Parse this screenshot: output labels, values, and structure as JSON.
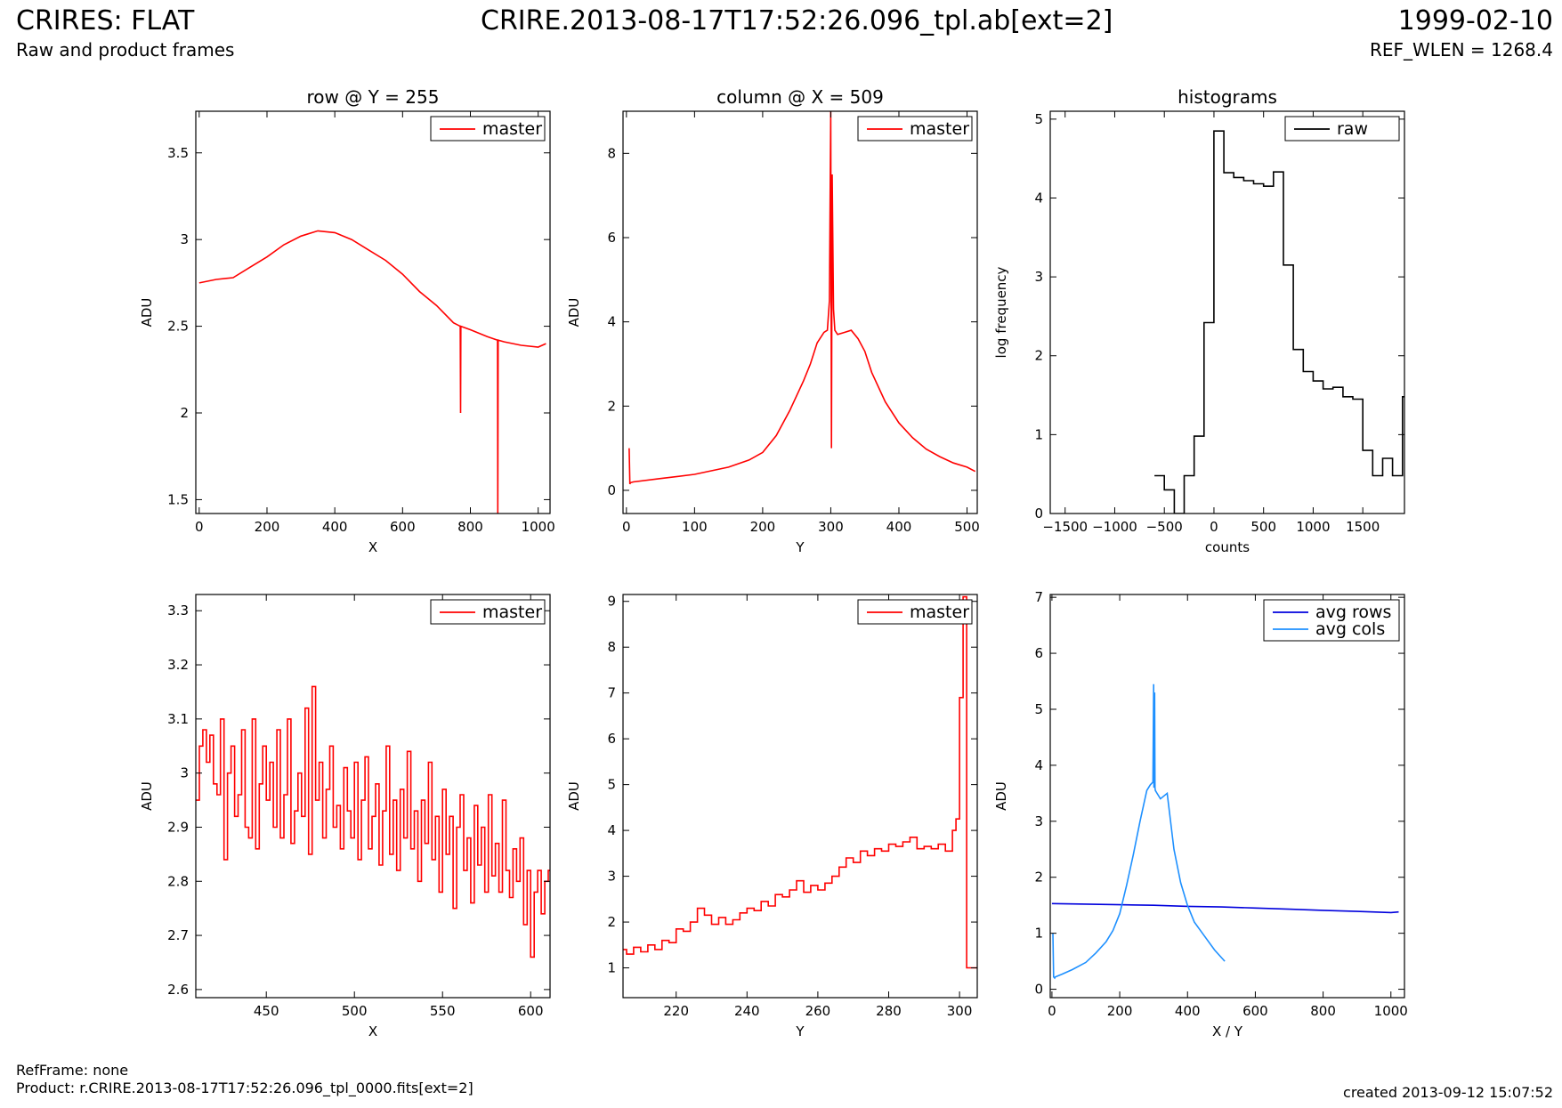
{
  "header": {
    "title_left": "CRIRES: FLAT",
    "title_center": "CRIRE.2013-08-17T17:52:26.096_tpl.ab[ext=2]",
    "title_right": "1999-02-10",
    "subtitle_left": "Raw and product frames",
    "subtitle_right": "REF_WLEN = 1268.4"
  },
  "footer": {
    "refframe": "RefFrame: none",
    "product": "Product: r.CRIRE.2013-08-17T17:52:26.096_tpl_0000.fits[ext=2]",
    "created": "created 2013-09-12 15:07:52"
  },
  "colors": {
    "red": "#ff0000",
    "black": "#000000",
    "navy": "#0000dd",
    "sky": "#1e90ff"
  },
  "chart_data": [
    {
      "id": "row-full",
      "type": "line",
      "title": "row @ Y = 255",
      "xlabel": "X",
      "ylabel": "ADU",
      "xlim": [
        -10,
        1035
      ],
      "ylim": [
        1.42,
        3.74
      ],
      "xticks": [
        0,
        200,
        400,
        600,
        800,
        1000
      ],
      "yticks": [
        1.5,
        2.0,
        2.5,
        3.0,
        3.5
      ],
      "legend_position": "top-right",
      "series": [
        {
          "name": "master",
          "color": "#ff0000",
          "x": [
            0,
            50,
            100,
            150,
            200,
            250,
            300,
            350,
            400,
            450,
            500,
            550,
            600,
            650,
            700,
            750,
            770,
            771,
            772,
            800,
            850,
            880,
            881,
            882,
            900,
            950,
            1000,
            1023
          ],
          "y": [
            2.75,
            2.77,
            2.78,
            2.84,
            2.9,
            2.97,
            3.02,
            3.05,
            3.04,
            3.0,
            2.94,
            2.88,
            2.8,
            2.7,
            2.62,
            2.52,
            2.5,
            2.0,
            2.5,
            2.48,
            2.44,
            2.42,
            1.42,
            2.42,
            2.41,
            2.39,
            2.38,
            2.4
          ]
        }
      ]
    },
    {
      "id": "col-full",
      "type": "line",
      "title": "column @ X = 509",
      "xlabel": "Y",
      "ylabel": "ADU",
      "xlim": [
        -5,
        515
      ],
      "ylim": [
        -0.55,
        9.0
      ],
      "xticks": [
        0,
        100,
        200,
        300,
        400,
        500
      ],
      "yticks": [
        0,
        2,
        4,
        6,
        8
      ],
      "legend_position": "top-right",
      "series": [
        {
          "name": "master",
          "color": "#ff0000",
          "x": [
            4,
            5,
            6,
            10,
            50,
            100,
            150,
            180,
            200,
            220,
            240,
            260,
            270,
            280,
            290,
            295,
            298,
            300,
            301,
            302,
            303,
            304,
            306,
            310,
            320,
            330,
            340,
            350,
            360,
            380,
            400,
            420,
            440,
            460,
            480,
            500,
            512
          ],
          "y": [
            1.0,
            0.15,
            0.18,
            0.2,
            0.28,
            0.38,
            0.55,
            0.72,
            0.9,
            1.3,
            1.9,
            2.6,
            3.0,
            3.5,
            3.75,
            3.8,
            4.5,
            9.0,
            1.0,
            7.5,
            6.0,
            4.3,
            3.8,
            3.7,
            3.75,
            3.8,
            3.6,
            3.3,
            2.8,
            2.1,
            1.6,
            1.25,
            0.98,
            0.8,
            0.65,
            0.55,
            0.45
          ]
        }
      ]
    },
    {
      "id": "histograms",
      "type": "line",
      "title": "histograms",
      "xlabel": "counts",
      "ylabel": "log frequency",
      "xlim": [
        -1650,
        1920
      ],
      "ylim": [
        0,
        5.1
      ],
      "xticks": [
        -1500,
        -1000,
        -500,
        0,
        500,
        1000,
        1500
      ],
      "yticks": [
        0,
        1,
        2,
        3,
        4,
        5
      ],
      "legend_position": "top-right",
      "series": [
        {
          "name": "raw",
          "color": "#000000",
          "step": true,
          "x": [
            -600,
            -500,
            -400,
            -300,
            -200,
            -100,
            0,
            100,
            200,
            300,
            400,
            500,
            600,
            700,
            800,
            900,
            1000,
            1100,
            1200,
            1300,
            1400,
            1500,
            1600,
            1700,
            1800,
            1900
          ],
          "y": [
            0.48,
            0.3,
            0.0,
            0.48,
            0.98,
            2.42,
            4.85,
            4.32,
            4.26,
            4.22,
            4.18,
            4.15,
            4.33,
            3.15,
            2.08,
            1.8,
            1.68,
            1.58,
            1.6,
            1.48,
            1.45,
            0.8,
            0.48,
            0.7,
            0.48,
            1.48
          ]
        }
      ]
    },
    {
      "id": "row-zoom",
      "type": "line",
      "title": "",
      "xlabel": "X",
      "ylabel": "ADU",
      "xlim": [
        410,
        611
      ],
      "ylim": [
        2.585,
        3.33
      ],
      "xticks": [
        450,
        500,
        550,
        600
      ],
      "yticks": [
        2.6,
        2.7,
        2.8,
        2.9,
        3.0,
        3.1,
        3.2,
        3.3
      ],
      "legend_position": "top-right",
      "series": [
        {
          "name": "master",
          "color": "#ff0000",
          "step": true,
          "x": [
            410,
            412,
            414,
            416,
            418,
            420,
            422,
            424,
            426,
            428,
            430,
            432,
            434,
            436,
            438,
            440,
            442,
            444,
            446,
            448,
            450,
            452,
            454,
            456,
            458,
            460,
            462,
            464,
            466,
            468,
            470,
            472,
            474,
            476,
            478,
            480,
            482,
            484,
            486,
            488,
            490,
            492,
            494,
            496,
            498,
            500,
            502,
            504,
            506,
            508,
            510,
            512,
            514,
            516,
            518,
            520,
            522,
            524,
            526,
            528,
            530,
            532,
            534,
            536,
            538,
            540,
            542,
            544,
            546,
            548,
            550,
            552,
            554,
            556,
            558,
            560,
            562,
            564,
            566,
            568,
            570,
            572,
            574,
            576,
            578,
            580,
            582,
            584,
            586,
            588,
            590,
            592,
            594,
            596,
            598,
            600,
            602,
            604,
            606,
            608,
            610
          ],
          "y": [
            2.95,
            3.05,
            3.08,
            3.02,
            3.07,
            2.98,
            2.96,
            3.1,
            2.84,
            3.0,
            3.05,
            2.92,
            2.96,
            3.08,
            2.9,
            2.88,
            3.1,
            2.86,
            2.98,
            3.05,
            2.95,
            3.02,
            2.9,
            3.08,
            2.88,
            2.96,
            3.1,
            2.87,
            2.93,
            3.0,
            2.92,
            3.12,
            2.85,
            3.16,
            2.95,
            3.02,
            2.88,
            2.97,
            3.05,
            2.9,
            2.94,
            2.86,
            3.01,
            2.93,
            2.88,
            3.02,
            2.84,
            2.95,
            3.03,
            2.86,
            2.92,
            2.98,
            2.83,
            2.93,
            3.05,
            2.85,
            2.95,
            2.82,
            2.97,
            2.88,
            3.04,
            2.86,
            2.93,
            2.8,
            2.95,
            2.87,
            3.02,
            2.84,
            2.92,
            2.78,
            2.97,
            2.85,
            2.92,
            2.75,
            2.9,
            2.96,
            2.82,
            2.88,
            2.76,
            2.94,
            2.83,
            2.9,
            2.78,
            2.96,
            2.81,
            2.87,
            2.78,
            2.95,
            2.82,
            2.77,
            2.86,
            2.8,
            2.88,
            2.72,
            2.82,
            2.66,
            2.78,
            2.82,
            2.74,
            2.8,
            2.82
          ]
        }
      ]
    },
    {
      "id": "col-zoom",
      "type": "line",
      "title": "",
      "xlabel": "Y",
      "ylabel": "ADU",
      "xlim": [
        205,
        305
      ],
      "ylim": [
        0.35,
        9.15
      ],
      "xticks": [
        220,
        240,
        260,
        280,
        300
      ],
      "yticks": [
        1,
        2,
        3,
        4,
        5,
        6,
        7,
        8,
        9
      ],
      "legend_position": "top-right",
      "series": [
        {
          "name": "master",
          "color": "#ff0000",
          "step": true,
          "x": [
            205,
            206,
            208,
            210,
            212,
            214,
            216,
            218,
            220,
            222,
            224,
            226,
            228,
            230,
            232,
            234,
            236,
            238,
            240,
            242,
            244,
            246,
            248,
            250,
            252,
            254,
            256,
            258,
            260,
            262,
            264,
            266,
            268,
            270,
            272,
            274,
            276,
            278,
            280,
            282,
            284,
            286,
            288,
            290,
            292,
            294,
            296,
            298,
            299,
            300,
            301,
            302,
            303,
            304,
            305
          ],
          "y": [
            1.4,
            1.3,
            1.45,
            1.35,
            1.5,
            1.4,
            1.6,
            1.55,
            1.85,
            1.8,
            2.0,
            2.3,
            2.15,
            1.95,
            2.1,
            1.95,
            2.05,
            2.2,
            2.3,
            2.25,
            2.45,
            2.35,
            2.6,
            2.55,
            2.7,
            2.9,
            2.65,
            2.8,
            2.7,
            2.85,
            3.0,
            3.2,
            3.4,
            3.3,
            3.55,
            3.45,
            3.6,
            3.55,
            3.7,
            3.65,
            3.75,
            3.85,
            3.6,
            3.65,
            3.6,
            3.7,
            3.55,
            4.0,
            4.25,
            6.9,
            9.1,
            1.0,
            1.0,
            1.0,
            1.0
          ]
        }
      ]
    },
    {
      "id": "averages",
      "type": "line",
      "title": "",
      "xlabel": "X / Y",
      "ylabel": "ADU",
      "xlim": [
        -5,
        1040
      ],
      "ylim": [
        -0.15,
        7.05
      ],
      "xticks": [
        0,
        200,
        400,
        600,
        800,
        1000
      ],
      "yticks": [
        0,
        1,
        2,
        3,
        4,
        5,
        6,
        7
      ],
      "legend_position": "top-right",
      "series": [
        {
          "name": "avg rows",
          "color": "#0000dd",
          "x": [
            0,
            100,
            200,
            300,
            400,
            500,
            600,
            700,
            800,
            900,
            1000,
            1023
          ],
          "y": [
            1.53,
            1.52,
            1.51,
            1.5,
            1.48,
            1.47,
            1.45,
            1.43,
            1.41,
            1.39,
            1.37,
            1.38
          ]
        },
        {
          "name": "avg cols",
          "color": "#1e90ff",
          "x": [
            3,
            5,
            8,
            10,
            30,
            60,
            100,
            130,
            160,
            180,
            200,
            220,
            240,
            260,
            280,
            290,
            298,
            300,
            301,
            303,
            304,
            305,
            310,
            320,
            340,
            350,
            360,
            380,
            400,
            420,
            450,
            480,
            510
          ],
          "y": [
            1.0,
            0.22,
            0.2,
            0.22,
            0.27,
            0.35,
            0.48,
            0.65,
            0.85,
            1.05,
            1.35,
            1.85,
            2.4,
            3.0,
            3.55,
            3.65,
            3.7,
            5.45,
            3.6,
            5.3,
            3.6,
            3.55,
            3.5,
            3.4,
            3.5,
            3.0,
            2.5,
            1.9,
            1.5,
            1.2,
            0.95,
            0.7,
            0.5
          ]
        }
      ]
    }
  ]
}
